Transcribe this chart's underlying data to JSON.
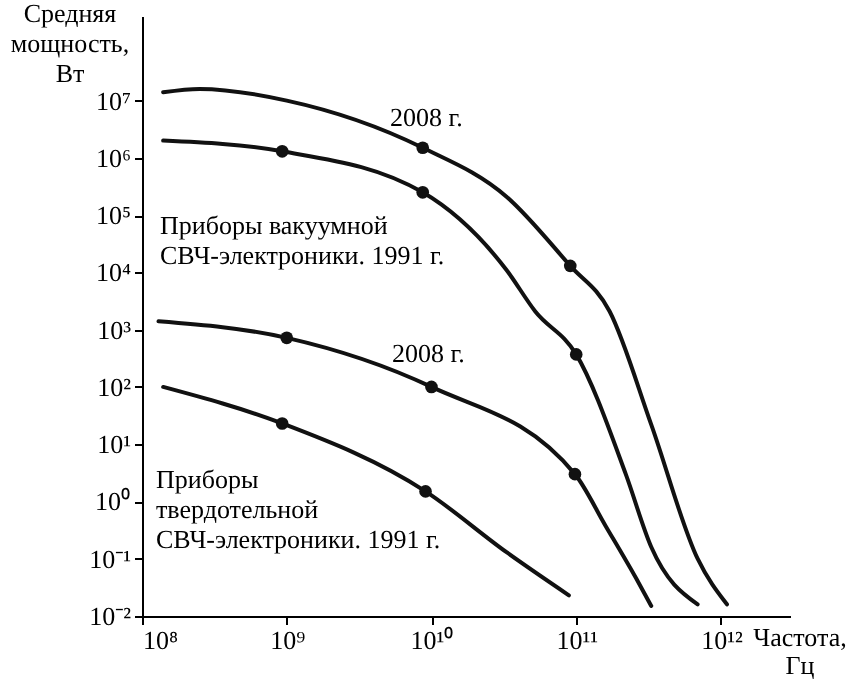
{
  "chart_data": {
    "type": "line",
    "xlabel": "Частота, Гц",
    "ylabel": "Средняя мощность, Вт",
    "log": "xy",
    "grid": false,
    "marker": "none",
    "line_style": "solid",
    "xlim": [
      100000000.0,
      3000000000000.0
    ],
    "ylim": [
      0.01,
      300000000.0
    ],
    "xticks": [
      {
        "value": 100000000.0,
        "label": "10⁸"
      },
      {
        "value": 1000000000.0,
        "label": "10⁹"
      },
      {
        "value": 10000000000.0,
        "label": "10¹⁰"
      },
      {
        "value": 100000000000.0,
        "label": "10¹¹"
      },
      {
        "value": 1000000000000.0,
        "label": "10¹²"
      }
    ],
    "yticks": [
      {
        "value": 0.01,
        "label": "10⁻²"
      },
      {
        "value": 0.1,
        "label": "10⁻¹"
      },
      {
        "value": 1,
        "label": "10⁰"
      },
      {
        "value": 10,
        "label": "10¹"
      },
      {
        "value": 100,
        "label": "10²"
      },
      {
        "value": 1000,
        "label": "10³"
      },
      {
        "value": 10000,
        "label": "10⁴"
      },
      {
        "value": 100000,
        "label": "10⁵"
      },
      {
        "value": 1000000,
        "label": "10⁶"
      },
      {
        "value": 10000000,
        "label": "10⁷"
      }
    ],
    "series": [
      {
        "color": "#111111",
        "x": [
          140000000.0,
          250000000.0,
          1000000000.0,
          8700000000.0,
          33000000000.0,
          91000000000.0,
          170000000000.0,
          330000000000.0,
          690000000000.0,
          1100000000000.0
        ],
        "values": [
          14000000.0,
          16000000.0,
          10000000.0,
          1500000.0,
          210000.0,
          13000.0,
          2100,
          22,
          0.1,
          0.016
        ]
      },
      {
        "color": "#111111",
        "x": [
          140000000.0,
          930000000.0,
          8700000000.0,
          33000000000.0,
          52000000000.0,
          100000000000.0,
          220000000000.0,
          330000000000.0,
          690000000000.0
        ],
        "values": [
          2000000.0,
          1300000.0,
          250000.0,
          11000.0,
          2100,
          370,
          3,
          0.16,
          0.016
        ]
      },
      {
        "color": "#111111",
        "x": [
          130000000.0,
          1000000000.0,
          10000000000.0,
          98000000000.0,
          160000000000.0,
          260000000000.0,
          330000000000.0
        ],
        "values": [
          1400,
          720,
          100,
          3,
          0.37,
          0.045,
          0.015
        ]
      },
      {
        "color": "#111111",
        "x": [
          140000000.0,
          930000000.0,
          9100000000.0,
          33000000000.0,
          89000000000.0
        ],
        "values": [
          100,
          23,
          1.5,
          0.13,
          0.023
        ]
      },
      {
        "type": "scatter",
        "color": "#111111",
        "marker": "circle",
        "x": [
          8700000000.0,
          91000000000.0,
          930000000.0,
          8700000000.0,
          100000000000.0,
          1000000000.0,
          10000000000.0,
          98000000000.0,
          930000000.0,
          9100000000.0
        ],
        "values": [
          1500000.0,
          13000.0,
          1300000.0,
          250000.0,
          370,
          720,
          100,
          3,
          23,
          1.5
        ]
      }
    ],
    "annotations": [
      "2008 г.",
      "Приборы вакуумной\nСВЧ-электроники. 1991 г.",
      "2008 г.",
      "Приборы\nтвердотельной\nСВЧ-электроники. 1991 г."
    ]
  }
}
